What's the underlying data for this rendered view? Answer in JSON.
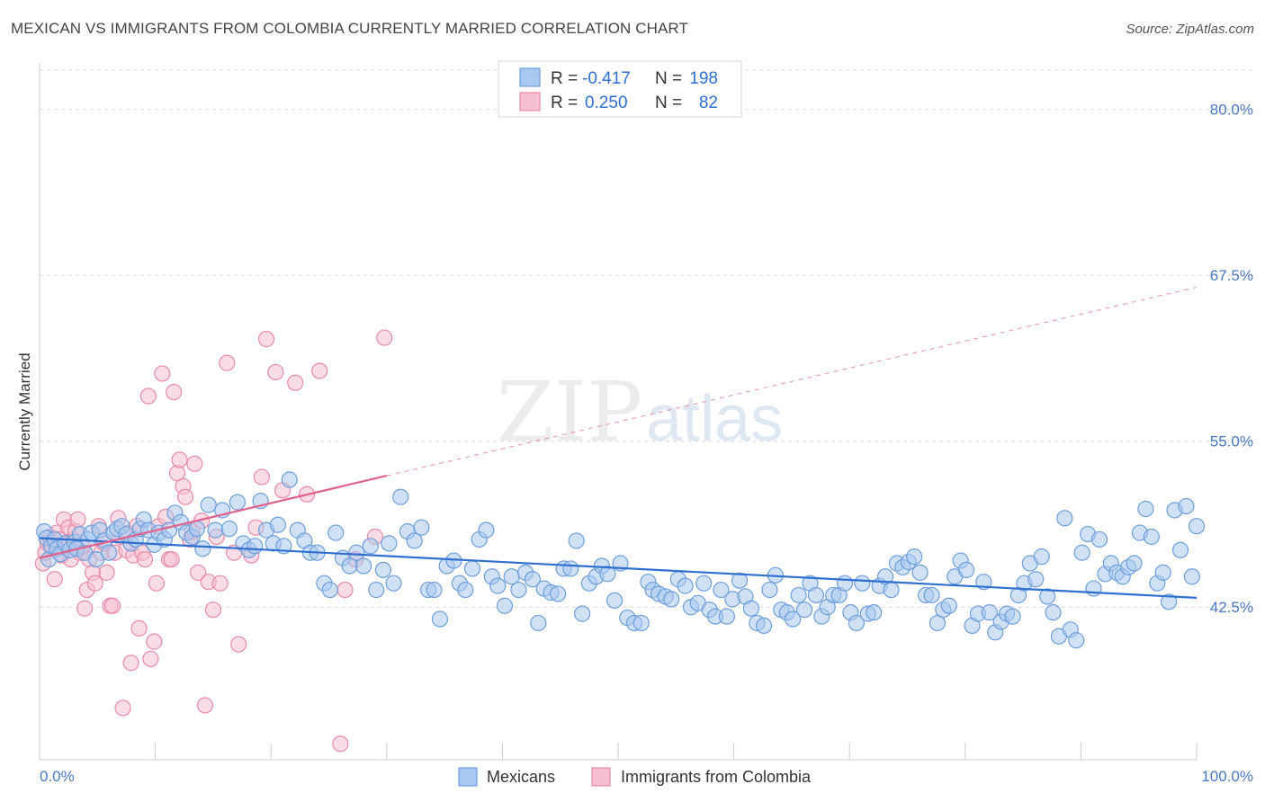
{
  "header": {
    "title": "MEXICAN VS IMMIGRANTS FROM COLOMBIA CURRENTLY MARRIED CORRELATION CHART",
    "source": "Source: ZipAtlas.com"
  },
  "watermark": {
    "zip": "ZIP",
    "atlas": "atlas"
  },
  "stats": [
    {
      "r_label": "R =",
      "r_value": "-0.417",
      "n_label": "N =",
      "n_value": "198"
    },
    {
      "r_label": "R =",
      "r_value": "0.250",
      "n_label": "N =",
      "n_value": "82"
    }
  ],
  "legend": {
    "series1": "Mexicans",
    "series2": "Immigrants from Colombia"
  },
  "colors": {
    "blue_fill": "#a9c8ef",
    "blue_stroke": "#6d9fdc",
    "blue_line": "#2e6fd0",
    "pink_fill": "#f6bfd0",
    "pink_stroke": "#e98aa9",
    "pink_line": "#e0628e",
    "tick_text": "#4a78c2",
    "grid": "#d9d9d9"
  },
  "chart_data": {
    "type": "scatter",
    "title": "MEXICAN VS IMMIGRANTS FROM COLOMBIA CURRENTLY MARRIED CORRELATION CHART",
    "xlabel": "",
    "ylabel": "Currently Married",
    "xlim": [
      0,
      100
    ],
    "ylim": [
      31.0,
      83.5
    ],
    "x_tick_labels": [
      "0.0%",
      "100.0%"
    ],
    "y_ticks": [
      42.5,
      55.0,
      67.5,
      80.0
    ],
    "y_tick_labels": [
      "42.5%",
      "55.0%",
      "67.5%",
      "80.0%"
    ],
    "grid": true,
    "legend_position": "bottom-center",
    "series": [
      {
        "name": "Mexicans",
        "r": -0.417,
        "n": 198,
        "trend": {
          "x": [
            0,
            100
          ],
          "y": [
            47.7,
            43.2
          ]
        },
        "points": [
          [
            0.4,
            48.2
          ],
          [
            0.6,
            47.7
          ],
          [
            0.8,
            46.1
          ],
          [
            1.0,
            47.1
          ],
          [
            1.3,
            47.6
          ],
          [
            1.5,
            46.9
          ],
          [
            1.8,
            46.5
          ],
          [
            2.2,
            47.3
          ],
          [
            2.6,
            46.8
          ],
          [
            3.0,
            47.4
          ],
          [
            3.2,
            46.9
          ],
          [
            3.5,
            48.0
          ],
          [
            3.9,
            46.6
          ],
          [
            4.2,
            47.6
          ],
          [
            4.5,
            48.1
          ],
          [
            4.9,
            46.1
          ],
          [
            5.2,
            48.3
          ],
          [
            5.6,
            47.5
          ],
          [
            6.0,
            46.6
          ],
          [
            6.4,
            48.1
          ],
          [
            6.7,
            48.4
          ],
          [
            7.1,
            48.6
          ],
          [
            7.5,
            48.0
          ],
          [
            7.9,
            47.3
          ],
          [
            8.3,
            47.6
          ],
          [
            8.7,
            48.4
          ],
          [
            9.0,
            49.1
          ],
          [
            9.4,
            48.3
          ],
          [
            9.9,
            47.2
          ],
          [
            10.3,
            48.1
          ],
          [
            10.8,
            47.6
          ],
          [
            11.2,
            48.3
          ],
          [
            11.7,
            49.6
          ],
          [
            12.2,
            48.9
          ],
          [
            12.7,
            48.1
          ],
          [
            13.2,
            47.8
          ],
          [
            13.6,
            48.4
          ],
          [
            14.1,
            46.9
          ],
          [
            14.6,
            50.2
          ],
          [
            15.2,
            48.3
          ],
          [
            15.8,
            49.8
          ],
          [
            16.4,
            48.4
          ],
          [
            17.1,
            50.4
          ],
          [
            17.6,
            47.3
          ],
          [
            18.1,
            46.8
          ],
          [
            18.6,
            47.1
          ],
          [
            19.1,
            50.5
          ],
          [
            19.6,
            48.3
          ],
          [
            20.2,
            47.3
          ],
          [
            20.6,
            48.7
          ],
          [
            21.1,
            47.1
          ],
          [
            21.6,
            52.1
          ],
          [
            22.3,
            48.3
          ],
          [
            22.9,
            47.5
          ],
          [
            23.4,
            46.6
          ],
          [
            24.0,
            46.6
          ],
          [
            24.6,
            44.3
          ],
          [
            25.1,
            43.8
          ],
          [
            25.6,
            48.1
          ],
          [
            26.2,
            46.2
          ],
          [
            26.8,
            45.6
          ],
          [
            27.4,
            46.6
          ],
          [
            28.0,
            45.6
          ],
          [
            28.6,
            47.1
          ],
          [
            29.1,
            43.8
          ],
          [
            29.7,
            45.3
          ],
          [
            30.2,
            47.3
          ],
          [
            30.6,
            44.3
          ],
          [
            31.2,
            50.8
          ],
          [
            31.8,
            48.2
          ],
          [
            32.4,
            47.5
          ],
          [
            33.0,
            48.5
          ],
          [
            33.6,
            43.8
          ],
          [
            34.1,
            43.8
          ],
          [
            34.6,
            41.6
          ],
          [
            35.2,
            45.6
          ],
          [
            35.8,
            46.0
          ],
          [
            36.3,
            44.3
          ],
          [
            36.8,
            43.8
          ],
          [
            37.4,
            45.4
          ],
          [
            38.0,
            47.6
          ],
          [
            38.6,
            48.3
          ],
          [
            39.1,
            44.8
          ],
          [
            39.6,
            44.1
          ],
          [
            40.2,
            42.6
          ],
          [
            40.8,
            44.8
          ],
          [
            41.4,
            43.8
          ],
          [
            42.0,
            45.1
          ],
          [
            42.6,
            44.6
          ],
          [
            43.1,
            41.3
          ],
          [
            43.6,
            43.9
          ],
          [
            44.2,
            43.6
          ],
          [
            44.8,
            43.5
          ],
          [
            45.3,
            45.4
          ],
          [
            45.9,
            45.4
          ],
          [
            46.4,
            47.5
          ],
          [
            46.9,
            42.0
          ],
          [
            47.5,
            44.3
          ],
          [
            48.1,
            44.8
          ],
          [
            48.6,
            45.6
          ],
          [
            49.1,
            45.0
          ],
          [
            49.7,
            43.0
          ],
          [
            50.2,
            45.8
          ],
          [
            50.8,
            41.7
          ],
          [
            51.4,
            41.3
          ],
          [
            52.0,
            41.3
          ],
          [
            52.6,
            44.4
          ],
          [
            53.0,
            43.8
          ],
          [
            53.5,
            43.5
          ],
          [
            54.1,
            43.3
          ],
          [
            54.6,
            43.1
          ],
          [
            55.2,
            44.6
          ],
          [
            55.8,
            44.1
          ],
          [
            56.3,
            42.5
          ],
          [
            56.9,
            42.8
          ],
          [
            57.4,
            44.3
          ],
          [
            57.9,
            42.3
          ],
          [
            58.4,
            41.8
          ],
          [
            58.9,
            43.8
          ],
          [
            59.4,
            41.8
          ],
          [
            59.9,
            43.1
          ],
          [
            60.5,
            44.5
          ],
          [
            61.0,
            43.3
          ],
          [
            61.5,
            42.4
          ],
          [
            62.0,
            41.3
          ],
          [
            62.6,
            41.1
          ],
          [
            63.1,
            43.8
          ],
          [
            63.6,
            44.9
          ],
          [
            64.1,
            42.3
          ],
          [
            64.6,
            42.1
          ],
          [
            65.1,
            41.6
          ],
          [
            65.6,
            43.4
          ],
          [
            66.1,
            42.3
          ],
          [
            66.6,
            44.3
          ],
          [
            67.1,
            43.4
          ],
          [
            67.6,
            41.8
          ],
          [
            68.1,
            42.5
          ],
          [
            68.6,
            43.4
          ],
          [
            69.1,
            43.4
          ],
          [
            69.6,
            44.3
          ],
          [
            70.1,
            42.1
          ],
          [
            70.6,
            41.3
          ],
          [
            71.1,
            44.3
          ],
          [
            71.6,
            42.0
          ],
          [
            72.1,
            42.1
          ],
          [
            72.6,
            44.1
          ],
          [
            73.1,
            44.8
          ],
          [
            73.6,
            43.8
          ],
          [
            74.1,
            45.8
          ],
          [
            74.6,
            45.5
          ],
          [
            75.1,
            45.9
          ],
          [
            75.6,
            46.3
          ],
          [
            76.1,
            45.1
          ],
          [
            76.6,
            43.4
          ],
          [
            77.1,
            43.4
          ],
          [
            77.6,
            41.3
          ],
          [
            78.1,
            42.3
          ],
          [
            78.6,
            42.6
          ],
          [
            79.1,
            44.8
          ],
          [
            79.6,
            46.0
          ],
          [
            80.1,
            45.3
          ],
          [
            80.6,
            41.1
          ],
          [
            81.1,
            42.0
          ],
          [
            81.6,
            44.4
          ],
          [
            82.1,
            42.1
          ],
          [
            82.6,
            40.6
          ],
          [
            83.1,
            41.4
          ],
          [
            83.6,
            42.0
          ],
          [
            84.1,
            41.8
          ],
          [
            84.6,
            43.4
          ],
          [
            85.1,
            44.3
          ],
          [
            85.6,
            45.8
          ],
          [
            86.1,
            44.6
          ],
          [
            86.6,
            46.3
          ],
          [
            87.1,
            43.3
          ],
          [
            87.6,
            42.1
          ],
          [
            88.1,
            40.3
          ],
          [
            88.6,
            49.2
          ],
          [
            89.1,
            40.8
          ],
          [
            89.6,
            40.0
          ],
          [
            90.1,
            46.6
          ],
          [
            90.6,
            48.0
          ],
          [
            91.1,
            43.9
          ],
          [
            91.6,
            47.6
          ],
          [
            92.1,
            45.0
          ],
          [
            92.6,
            45.8
          ],
          [
            93.1,
            45.1
          ],
          [
            93.6,
            44.8
          ],
          [
            94.1,
            45.5
          ],
          [
            94.6,
            45.8
          ],
          [
            95.1,
            48.1
          ],
          [
            95.6,
            49.9
          ],
          [
            96.1,
            47.8
          ],
          [
            96.6,
            44.3
          ],
          [
            97.1,
            45.1
          ],
          [
            97.6,
            42.9
          ],
          [
            98.1,
            49.8
          ],
          [
            98.6,
            46.8
          ],
          [
            99.1,
            50.1
          ],
          [
            99.6,
            44.8
          ],
          [
            100.0,
            48.6
          ]
        ]
      },
      {
        "name": "Immigrants from Colombia",
        "r": 0.25,
        "n": 82,
        "trend": {
          "x": [
            0,
            30
          ],
          "y": [
            46.2,
            52.4
          ],
          "extended_to": [
            100,
            66.6
          ]
        },
        "points": [
          [
            0.3,
            45.8
          ],
          [
            0.5,
            46.6
          ],
          [
            0.7,
            47.3
          ],
          [
            0.9,
            47.8
          ],
          [
            1.1,
            46.9
          ],
          [
            1.3,
            44.6
          ],
          [
            1.5,
            48.1
          ],
          [
            1.7,
            47.6
          ],
          [
            1.9,
            46.4
          ],
          [
            2.1,
            49.1
          ],
          [
            2.3,
            47.3
          ],
          [
            2.5,
            48.5
          ],
          [
            2.7,
            46.1
          ],
          [
            2.9,
            47.6
          ],
          [
            3.1,
            48.2
          ],
          [
            3.3,
            49.1
          ],
          [
            3.5,
            46.6
          ],
          [
            3.7,
            47.1
          ],
          [
            3.9,
            42.4
          ],
          [
            4.1,
            43.8
          ],
          [
            4.3,
            46.1
          ],
          [
            4.6,
            45.1
          ],
          [
            4.8,
            44.3
          ],
          [
            5.1,
            48.6
          ],
          [
            5.3,
            46.6
          ],
          [
            5.6,
            47.3
          ],
          [
            5.8,
            45.1
          ],
          [
            6.1,
            42.6
          ],
          [
            6.3,
            42.6
          ],
          [
            6.5,
            46.6
          ],
          [
            6.8,
            49.2
          ],
          [
            7.0,
            47.8
          ],
          [
            7.2,
            34.9
          ],
          [
            7.5,
            46.8
          ],
          [
            7.7,
            48.1
          ],
          [
            7.9,
            38.3
          ],
          [
            8.1,
            46.4
          ],
          [
            8.4,
            48.6
          ],
          [
            8.6,
            40.9
          ],
          [
            8.9,
            46.6
          ],
          [
            9.1,
            46.1
          ],
          [
            9.4,
            58.4
          ],
          [
            9.6,
            38.6
          ],
          [
            9.9,
            39.9
          ],
          [
            10.1,
            44.3
          ],
          [
            10.3,
            48.6
          ],
          [
            10.6,
            60.1
          ],
          [
            10.9,
            49.3
          ],
          [
            11.2,
            46.1
          ],
          [
            11.4,
            46.1
          ],
          [
            11.6,
            58.7
          ],
          [
            11.9,
            52.6
          ],
          [
            12.1,
            53.6
          ],
          [
            12.4,
            51.6
          ],
          [
            12.6,
            50.8
          ],
          [
            13.0,
            47.6
          ],
          [
            13.2,
            48.2
          ],
          [
            13.4,
            53.3
          ],
          [
            13.7,
            45.1
          ],
          [
            14.0,
            49.0
          ],
          [
            14.3,
            35.1
          ],
          [
            14.6,
            44.4
          ],
          [
            15.0,
            42.3
          ],
          [
            15.3,
            47.8
          ],
          [
            15.6,
            44.3
          ],
          [
            16.2,
            60.9
          ],
          [
            16.8,
            46.6
          ],
          [
            17.2,
            39.7
          ],
          [
            18.3,
            46.4
          ],
          [
            18.7,
            48.5
          ],
          [
            19.2,
            52.3
          ],
          [
            19.6,
            62.7
          ],
          [
            20.4,
            60.2
          ],
          [
            21.0,
            51.3
          ],
          [
            22.1,
            59.4
          ],
          [
            23.1,
            51.0
          ],
          [
            24.2,
            60.3
          ],
          [
            26.0,
            32.2
          ],
          [
            26.4,
            43.8
          ],
          [
            27.3,
            46.1
          ],
          [
            29.0,
            47.8
          ],
          [
            29.8,
            62.8
          ]
        ]
      }
    ]
  }
}
